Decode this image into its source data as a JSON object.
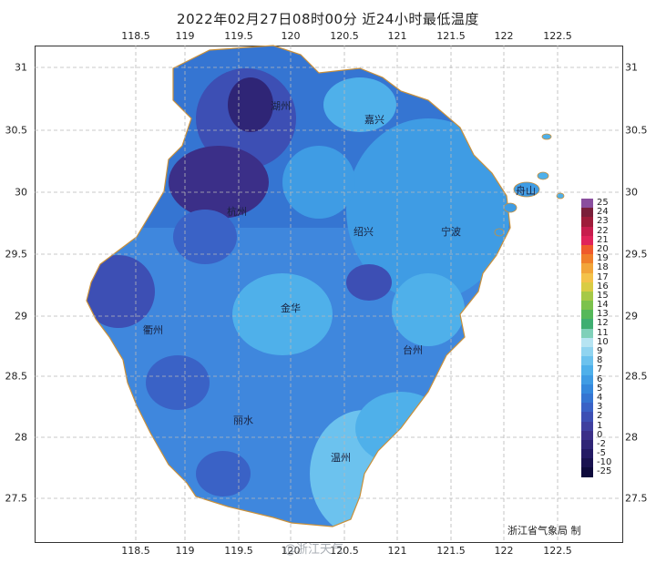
{
  "title": "2022年02月27日08时00分  近24小时最低温度",
  "axes": {
    "lon_labels": [
      "118.5",
      "119",
      "119.5",
      "120",
      "120.5",
      "121",
      "121.5",
      "122",
      "122.5"
    ],
    "lat_labels": [
      "31",
      "30.5",
      "30",
      "29.5",
      "29",
      "28.5",
      "28",
      "27.5"
    ]
  },
  "cities": [
    "湖州",
    "嘉兴",
    "舟山",
    "杭州",
    "绍兴",
    "宁波",
    "金华",
    "衢州",
    "台州",
    "丽水",
    "温州"
  ],
  "legend": {
    "labels": [
      "25",
      "24",
      "23",
      "22",
      "21",
      "20",
      "19",
      "18",
      "17",
      "16",
      "15",
      "14",
      "13",
      "12",
      "11",
      "10",
      "9",
      "8",
      "7",
      "6",
      "5",
      "4",
      "3",
      "2",
      "1",
      "0",
      "-2",
      "-5",
      "-10",
      "-25"
    ],
    "colors": [
      "#8a4e9e",
      "#7a1f3a",
      "#9e1c3a",
      "#c71d4d",
      "#e0235a",
      "#ef5a2b",
      "#f07f2a",
      "#f2a53a",
      "#f4c24a",
      "#d9cc44",
      "#a6c947",
      "#7cc24c",
      "#55b85a",
      "#3fae72",
      "#7fd0b9",
      "#b6e4f2",
      "#90d4f0",
      "#6cc2ee",
      "#4fb0ea",
      "#3f9ce4",
      "#3588dc",
      "#3575d2",
      "#3a62c6",
      "#3d4fb4",
      "#3f3f9f",
      "#3b2f88",
      "#2f2576",
      "#231a64",
      "#191250",
      "#0e0a3c"
    ]
  },
  "credit": "浙江省气象局 制",
  "watermark": "@浙江天气"
}
